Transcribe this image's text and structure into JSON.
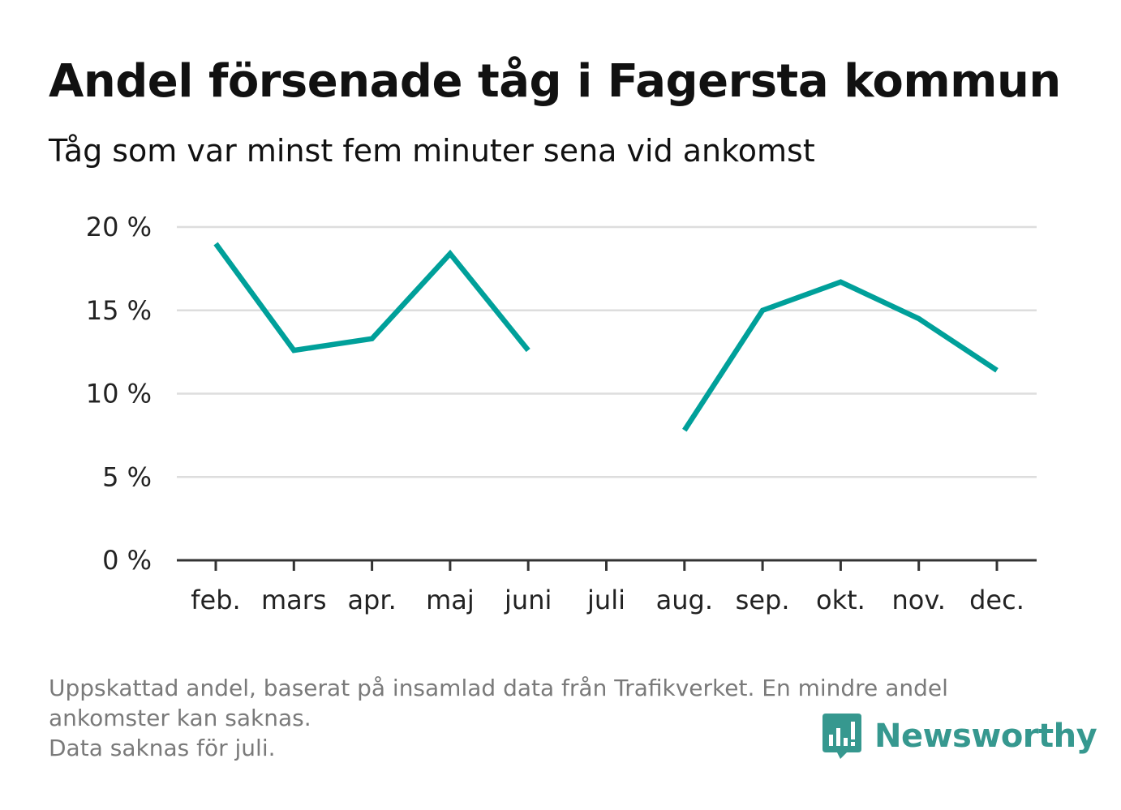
{
  "header": {
    "title": "Andel försenade tåg i Fagersta kommun",
    "subtitle": "Tåg som var minst fem minuter sena vid ankomst"
  },
  "footer": {
    "note_line1": "Uppskattad andel, baserat på insamlad data från Trafikverket. En mindre andel",
    "note_line2": "ankomster kan saknas.",
    "note_line3": "Data saknas för juli.",
    "brand": "Newsworthy"
  },
  "colors": {
    "line": "#00a09a",
    "grid": "#dddddd",
    "axis": "#333333",
    "brand": "#36988f"
  },
  "chart_data": {
    "type": "line",
    "categories": [
      "feb.",
      "mars",
      "apr.",
      "maj",
      "juni",
      "juli",
      "aug.",
      "sep.",
      "okt.",
      "nov.",
      "dec."
    ],
    "series": [
      {
        "values": [
          19.0,
          12.6,
          13.3,
          18.4,
          12.6,
          null,
          7.8,
          15.0,
          16.7,
          14.5,
          11.4
        ]
      }
    ],
    "yticks": [
      0,
      5,
      10,
      15,
      20
    ],
    "ytick_labels": [
      "0 %",
      "5 %",
      "10 %",
      "15 %",
      "20 %"
    ],
    "ylim": [
      0,
      20
    ],
    "grid": true,
    "legend": "none"
  }
}
